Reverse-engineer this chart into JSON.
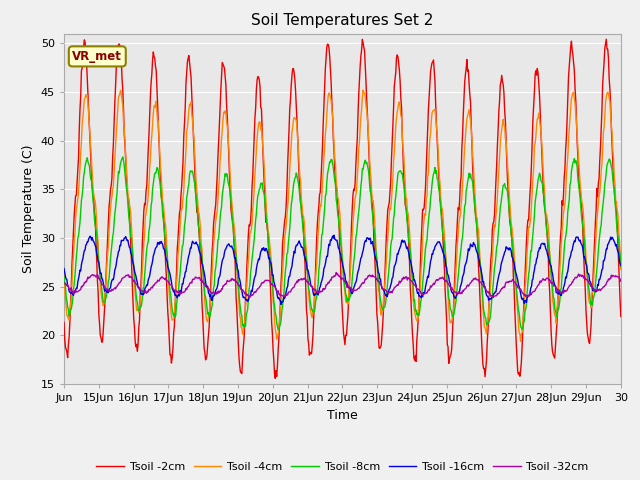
{
  "title": "Soil Temperatures Set 2",
  "xlabel": "Time",
  "ylabel": "Soil Temperature (C)",
  "ylim": [
    15,
    51
  ],
  "yticks": [
    15,
    20,
    25,
    30,
    35,
    40,
    45,
    50
  ],
  "annotation": "VR_met",
  "series_colors": [
    "#ee0000",
    "#ff8800",
    "#00cc00",
    "#0000dd",
    "#aa00aa"
  ],
  "series_labels": [
    "Tsoil -2cm",
    "Tsoil -4cm",
    "Tsoil -8cm",
    "Tsoil -16cm",
    "Tsoil -32cm"
  ],
  "background_color": "#f0f0f0",
  "plot_bg_color": "#e8e8e8",
  "grid_color": "#ffffff",
  "x_start": 14.0,
  "x_end": 30.0,
  "x_tick_positions": [
    14,
    15,
    16,
    17,
    18,
    19,
    20,
    21,
    22,
    23,
    24,
    25,
    26,
    27,
    28,
    29,
    30
  ],
  "x_tick_labels": [
    "Jun",
    "15Jun",
    "16Jun",
    "17Jun",
    "18Jun",
    "19Jun",
    "20Jun",
    "21Jun",
    "22Jun",
    "23Jun",
    "24Jun",
    "25Jun",
    "26Jun",
    "27Jun",
    "28Jun",
    "29Jun",
    "30"
  ],
  "figsize": [
    6.4,
    4.8
  ],
  "dpi": 100
}
